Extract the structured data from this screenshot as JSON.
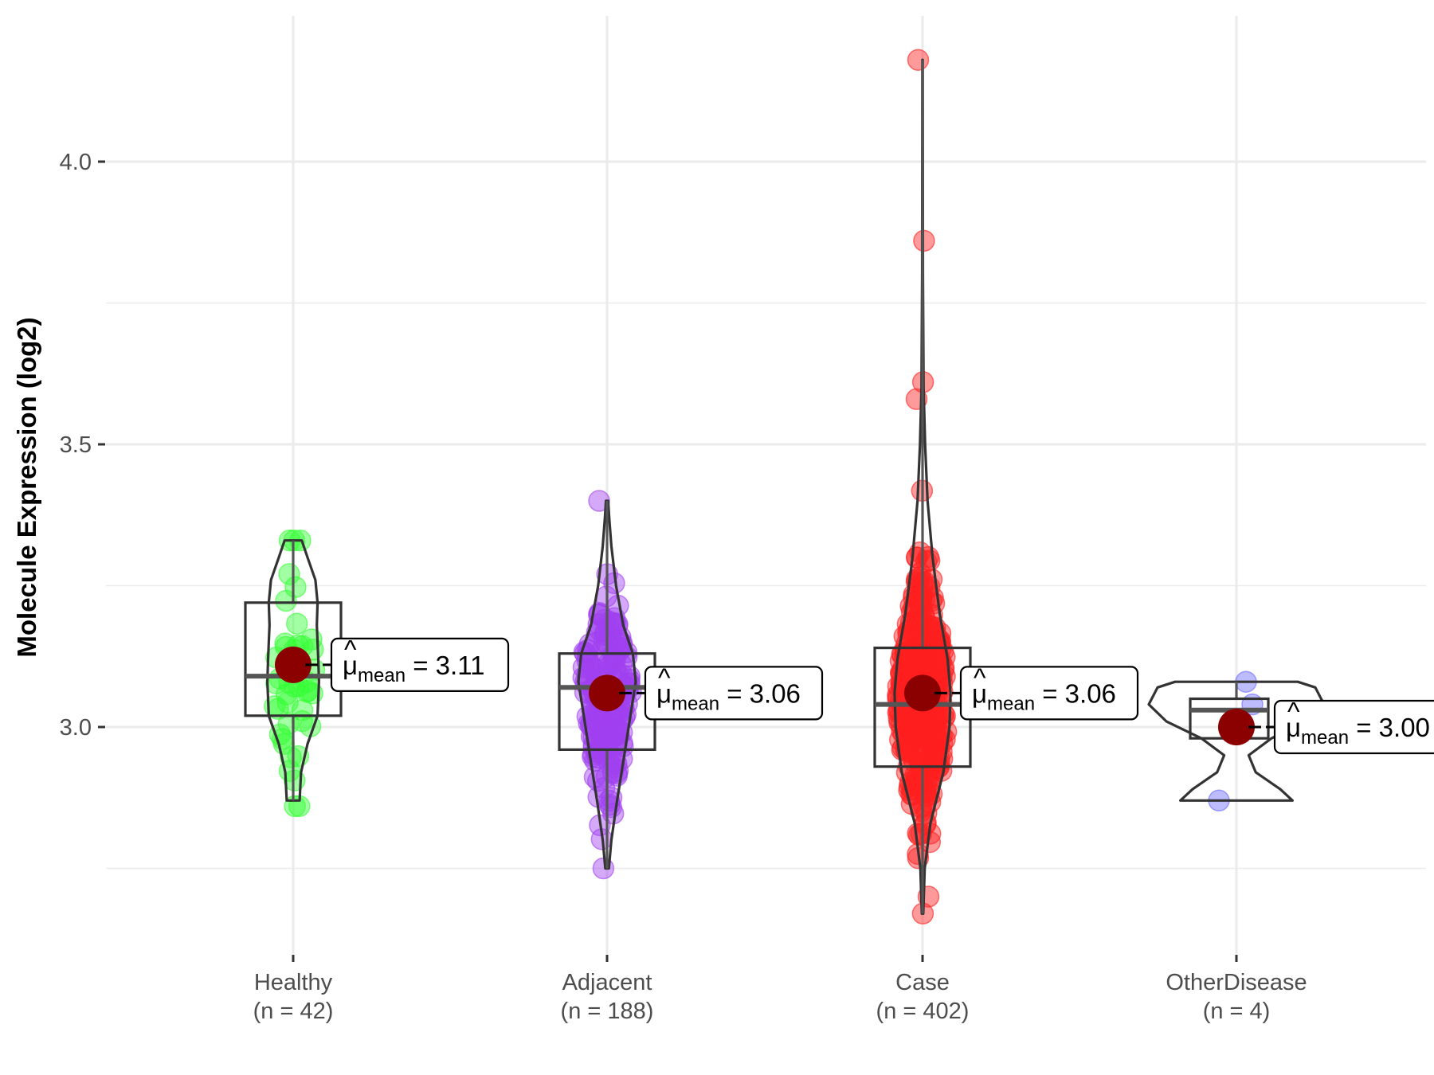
{
  "chart_data": {
    "type": "violin-box-jitter",
    "title": "",
    "xlabel": "",
    "ylabel": "Molecule Expression (log2)",
    "ylim": [
      2.62,
      4.22
    ],
    "y_ticks": [
      3.0,
      3.5,
      4.0
    ],
    "y_tick_labels": [
      "3.0",
      "3.5",
      "4.0"
    ],
    "y_minor_gridlines": [
      2.75,
      3.25,
      3.75
    ],
    "grid": true,
    "legend": "none",
    "mean_label_template": "μ̂ mean = value",
    "mean_label_symbol": "μ",
    "mean_label_subscript": "mean",
    "mean_color": "#8b0000",
    "groups": [
      {
        "name": "Healthy",
        "n_label": "(n = 42)",
        "n": 42,
        "color": "#33ff33",
        "mean": 3.11,
        "mean_label": "3.11",
        "box": {
          "q1": 3.02,
          "median": 3.09,
          "q3": 3.22,
          "whisker_low": 2.87,
          "whisker_high": 3.33
        },
        "range": [
          2.86,
          3.33
        ],
        "violin_width": [
          [
            2.87,
            0.18
          ],
          [
            2.92,
            0.22
          ],
          [
            2.97,
            0.4
          ],
          [
            3.02,
            0.68
          ],
          [
            3.08,
            0.72
          ],
          [
            3.12,
            0.7
          ],
          [
            3.18,
            0.66
          ],
          [
            3.22,
            0.68
          ],
          [
            3.26,
            0.62
          ],
          [
            3.3,
            0.4
          ],
          [
            3.33,
            0.24
          ]
        ]
      },
      {
        "name": "Adjacent",
        "n_label": "(n = 188)",
        "n": 188,
        "color": "#a040f0",
        "mean": 3.06,
        "mean_label": "3.06",
        "box": {
          "q1": 2.96,
          "median": 3.07,
          "q3": 3.13,
          "whisker_low": 2.75,
          "whisker_high": 3.4
        },
        "range": [
          2.75,
          3.4
        ],
        "violin_width": [
          [
            2.75,
            0.05
          ],
          [
            2.8,
            0.12
          ],
          [
            2.87,
            0.28
          ],
          [
            2.95,
            0.48
          ],
          [
            3.02,
            0.65
          ],
          [
            3.08,
            0.8
          ],
          [
            3.13,
            0.72
          ],
          [
            3.18,
            0.45
          ],
          [
            3.25,
            0.25
          ],
          [
            3.32,
            0.12
          ],
          [
            3.37,
            0.06
          ],
          [
            3.4,
            0.03
          ]
        ]
      },
      {
        "name": "Case",
        "n_label": "(n = 402)",
        "n": 402,
        "color": "#ff2020",
        "mean": 3.06,
        "mean_label": "3.06",
        "box": {
          "q1": 2.93,
          "median": 3.04,
          "q3": 3.14,
          "whisker_low": 2.67,
          "whisker_high": 3.55
        },
        "range": [
          2.67,
          4.18
        ],
        "violin_width": [
          [
            2.67,
            0.02
          ],
          [
            2.75,
            0.06
          ],
          [
            2.83,
            0.22
          ],
          [
            2.92,
            0.58
          ],
          [
            3.0,
            0.75
          ],
          [
            3.06,
            0.78
          ],
          [
            3.12,
            0.7
          ],
          [
            3.2,
            0.48
          ],
          [
            3.3,
            0.28
          ],
          [
            3.4,
            0.14
          ],
          [
            3.5,
            0.07
          ],
          [
            3.6,
            0.03
          ],
          [
            3.8,
            0.01
          ],
          [
            4.18,
            0.005
          ]
        ]
      },
      {
        "name": "OtherDisease",
        "n_label": "(n = 4)",
        "n": 4,
        "color": "#6b6bff",
        "mean": 3.0,
        "mean_label": "3.00",
        "box": {
          "q1": 2.98,
          "median": 3.03,
          "q3": 3.05,
          "whisker_low": 2.98,
          "whisker_high": 3.08
        },
        "range": [
          2.87,
          3.08
        ],
        "points": [
          3.08,
          3.04,
          3.0,
          2.87
        ],
        "violin_width": [
          [
            2.87,
            0.64
          ],
          [
            2.89,
            0.5
          ],
          [
            2.92,
            0.22
          ],
          [
            2.95,
            0.14
          ],
          [
            2.98,
            0.4
          ],
          [
            3.01,
            0.8
          ],
          [
            3.04,
            1.0
          ],
          [
            3.07,
            0.9
          ],
          [
            3.08,
            0.7
          ]
        ]
      }
    ]
  }
}
